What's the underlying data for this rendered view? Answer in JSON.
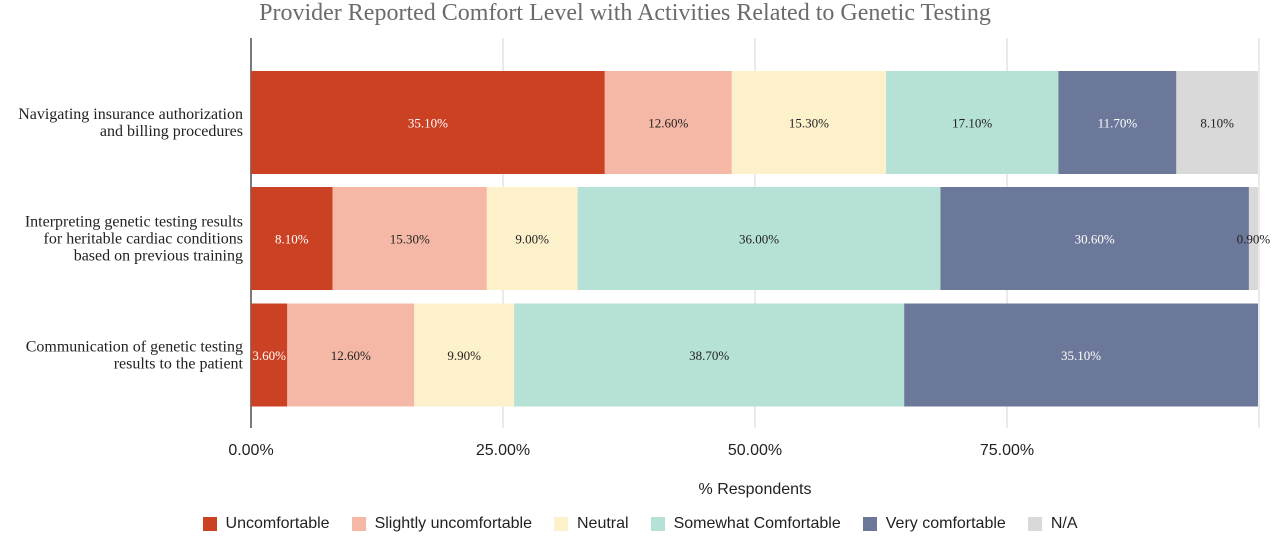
{
  "chart_data": {
    "type": "bar",
    "orientation": "horizontal",
    "stacked": true,
    "title": "Provider Reported Comfort Level with Activities Related to Genetic Testing",
    "xlabel": "% Respondents",
    "ylabel": "",
    "xlim": [
      0,
      100
    ],
    "xticks": [
      "0.00%",
      "25.00%",
      "50.00%",
      "75.00%"
    ],
    "xtick_values": [
      0,
      25,
      50,
      75
    ],
    "grid": true,
    "legend_position": "bottom",
    "categories": [
      [
        "Navigating insurance authorization",
        "and billing procedures"
      ],
      [
        "Interpreting genetic testing results",
        "for heritable cardiac conditions",
        "based on previous training"
      ],
      [
        "Communication of genetic testing",
        "results to the patient"
      ]
    ],
    "series": [
      {
        "name": "Uncomfortable",
        "color": "#cb4123",
        "label_color": "#ffffff",
        "values": [
          35.1,
          8.1,
          3.6
        ],
        "labels": [
          "35.10%",
          "8.10%",
          "3.60%"
        ]
      },
      {
        "name": "Slightly uncomfortable",
        "color": "#f6b8a6",
        "label_color": "#222222",
        "values": [
          12.6,
          15.3,
          12.6
        ],
        "labels": [
          "12.60%",
          "15.30%",
          "12.60%"
        ]
      },
      {
        "name": "Neutral",
        "color": "#fdf1cc",
        "label_color": "#222222",
        "values": [
          15.3,
          9.0,
          9.9
        ],
        "labels": [
          "15.30%",
          "9.00%",
          "9.90%"
        ]
      },
      {
        "name": "Somewhat Comfortable",
        "color": "#b6e1d6",
        "label_color": "#222222",
        "values": [
          17.1,
          36.0,
          38.7
        ],
        "labels": [
          "17.10%",
          "36.00%",
          "38.70%"
        ]
      },
      {
        "name": "Very comfortable",
        "color": "#6c7899",
        "label_color": "#ffffff",
        "values": [
          11.7,
          30.6,
          35.1
        ],
        "labels": [
          "11.70%",
          "30.60%",
          "35.10%"
        ]
      },
      {
        "name": "N/A",
        "color": "#d9d9d9",
        "label_color": "#222222",
        "values": [
          8.1,
          0.9,
          0
        ],
        "labels": [
          "8.10%",
          "0.90%",
          ""
        ]
      }
    ]
  }
}
